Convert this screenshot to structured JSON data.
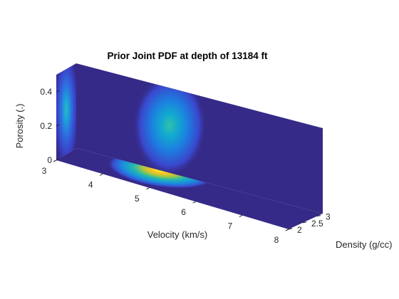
{
  "chart_data": {
    "type": "heatmap",
    "title": "Prior Joint PDF at depth of 13184 ft",
    "xlabel": "Velocity (km/s)",
    "ylabel": "Density (g/cc)",
    "zlabel": "Porosity (.)",
    "xlim": [
      3,
      8
    ],
    "ylim": [
      2,
      3.2
    ],
    "zlim": [
      0,
      0.5
    ],
    "x_ticks": [
      "3",
      "4",
      "5",
      "6",
      "7",
      "8"
    ],
    "y_ticks": [
      "2",
      "2.5",
      "3"
    ],
    "z_ticks": [
      "0",
      "0.2",
      "0.4"
    ],
    "colormap": "parula",
    "colors": {
      "background": "#352a87",
      "low": "#3e3ec7",
      "mid": "#0fa3d8",
      "high_mid": "#31c6a8",
      "peak": "#f9fb0e"
    },
    "slices": [
      {
        "plane": "x",
        "at": 3,
        "peak": {
          "y": 2.4,
          "z": 0.22
        },
        "intensity": 0.45
      },
      {
        "plane": "y",
        "at": 3.2,
        "peak": {
          "x": 5.3,
          "z": 0.22
        },
        "intensity": 0.55
      },
      {
        "plane": "z",
        "at": 0,
        "peak": {
          "x": 5.0,
          "y": 2.4
        },
        "intensity": 1.0
      }
    ]
  }
}
